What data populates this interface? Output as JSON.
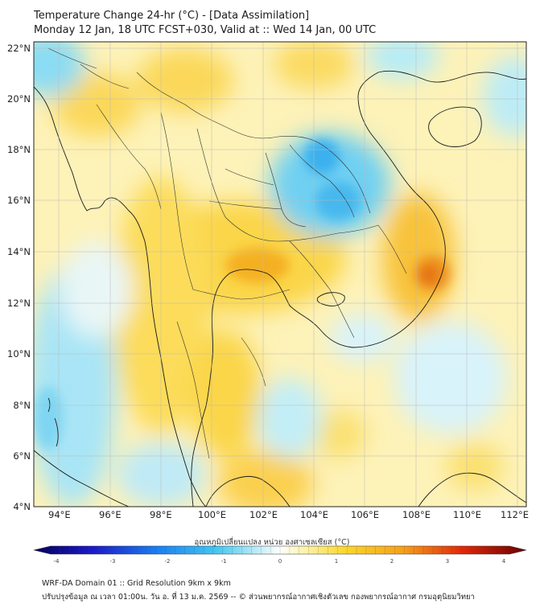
{
  "title": {
    "line1": "Temperature Change 24-hr (°C) - [Data Assimilation]",
    "line2": "Monday 12 Jan, 18 UTC FCST+030, Valid at :: Wed 14 Jan, 00 UTC"
  },
  "axes": {
    "lat_labels": [
      "22°N",
      "20°N",
      "18°N",
      "16°N",
      "14°N",
      "12°N",
      "10°N",
      "8°N",
      "6°N",
      "4°N"
    ],
    "lon_labels": [
      "94°E",
      "96°E",
      "98°E",
      "100°E",
      "102°E",
      "104°E",
      "106°E",
      "108°E",
      "110°E",
      "112°E"
    ],
    "lat_range": [
      4,
      22.3
    ],
    "lon_range": [
      93,
      112.3
    ]
  },
  "colorbar": {
    "label": "อุณหภูมิเปลี่ยนแปลง หน่วย องศาเซลเซียส (°C)",
    "ticks": [
      "-4",
      "-3",
      "-2",
      "-1",
      "0",
      "1",
      "2",
      "3",
      "4"
    ],
    "range": [
      -4,
      4
    ]
  },
  "footer": {
    "line1": "WRF-DA Domain 01 :: Grid Resolution 9km x 9km",
    "line2": "ปรับปรุงข้อมูล ณ เวลา 01:00น. วัน อ. ที่ 13 ม.ค. 2569 -- © ส่วนพยากรณ์อากาศเชิงตัวเลข กองพยากรณ์อากาศ กรมอุตุนิยมวิทยา"
  },
  "field_features": [
    {
      "name": "cold-core-northeast-thailand-laos",
      "lon": 104.8,
      "lat": 16.6,
      "value": -1.8
    },
    {
      "name": "warm-core-central-vietnam",
      "lon": 108.7,
      "lat": 13.1,
      "value": 2.8
    },
    {
      "name": "cool-zone-andaman-sea",
      "lon": 94.5,
      "lat": 9.0,
      "value": -1.2
    },
    {
      "name": "cool-zone-gulf-of-thailand-south",
      "lon": 103.5,
      "lat": 6.5,
      "value": -0.8
    },
    {
      "name": "cool-zone-bay-of-bengal-north",
      "lon": 93.8,
      "lat": 21.5,
      "value": -1.0
    },
    {
      "name": "warm-zone-central-thailand",
      "lon": 101.5,
      "lat": 14.0,
      "value": 1.5
    },
    {
      "name": "warm-zone-myanmar",
      "lon": 98.0,
      "lat": 19.5,
      "value": 1.2
    }
  ]
}
